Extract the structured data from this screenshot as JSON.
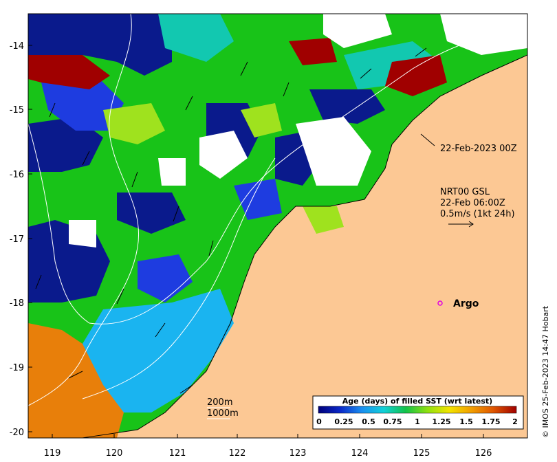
{
  "map": {
    "x_ticks": [
      "119",
      "120",
      "121",
      "122",
      "123",
      "124",
      "125",
      "126"
    ],
    "y_ticks": [
      "-14",
      "-15",
      "-16",
      "-17",
      "-18",
      "-19",
      "-20"
    ],
    "lon_range": [
      118.6,
      126.7
    ],
    "lat_range": [
      -20.2,
      -13.5
    ]
  },
  "annotations": {
    "track_time": "22-Feb-2023 00Z",
    "current_source": "NRT00 GSL",
    "current_time": "22-Feb 06:00Z",
    "current_scale": "0.5m/s (1kt 24h)",
    "argo_label": "Argo",
    "contour_200": "200m",
    "contour_1000": "1000m"
  },
  "colorbar": {
    "title": "Age (days) of filled SST (wrt latest)",
    "ticks": [
      "0",
      "0.25",
      "0.5",
      "0.75",
      "1",
      "1.25",
      "1.5",
      "1.75",
      "2"
    ],
    "stops": [
      "#00007a",
      "#0a28c8",
      "#1a8ff0",
      "#12d0d8",
      "#12c24a",
      "#8ee010",
      "#f2e400",
      "#f2a000",
      "#e05800",
      "#a00000"
    ]
  },
  "credit": "© IMOS 25-Feb-2023 14:47 Hobart",
  "colors": {
    "land": "#fcc894",
    "navy": "#0a1a8c",
    "blue": "#1e3ce0",
    "green": "#18c318",
    "lime": "#9fe21e",
    "teal": "#12c8b0",
    "sky": "#1ab4f0",
    "orange": "#e87f0a",
    "darkred": "#a00000",
    "argo": "#e000e0"
  }
}
